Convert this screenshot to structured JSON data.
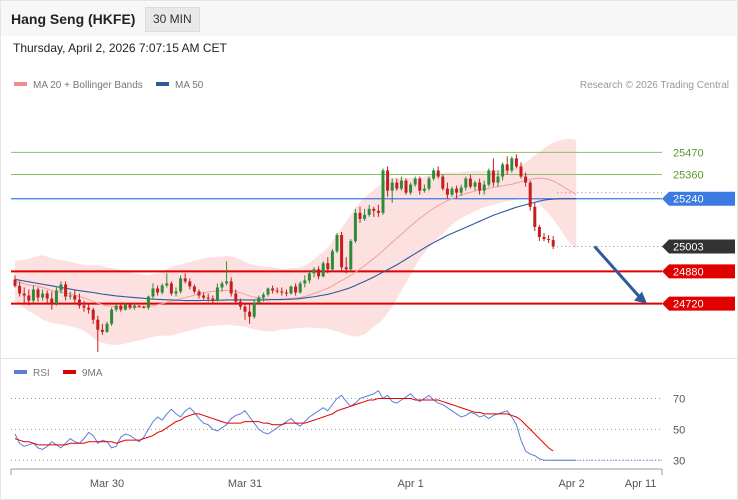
{
  "header": {
    "title": "Hang Seng (HKFE)",
    "interval": "30 MIN"
  },
  "timestamp": "Thursday, April 2, 2026 7:07:15 AM CET",
  "legend": {
    "ma20": {
      "label": "MA 20 + Bollinger Bands",
      "color": "#f28b8b"
    },
    "ma50": {
      "label": "MA 50",
      "color": "#2e5a9a"
    },
    "rsi": {
      "label": "RSI",
      "color": "#5b7fd6"
    },
    "ma9": {
      "label": "9MA",
      "color": "#e00000"
    }
  },
  "copyright": "Research © 2026 Trading Central",
  "colors": {
    "up": "#2e8b3a",
    "down": "#c41e1e",
    "resistance": "#8cc063",
    "pivot": "#3b7ae0",
    "support": "#e00000",
    "last": "#333333",
    "arrow": "#2e5a9a"
  },
  "chart_data": {
    "type": "candlestick",
    "ylim": [
      24480,
      25670
    ],
    "x_ticks": [
      {
        "label": "Mar 30",
        "index": 20
      },
      {
        "label": "Mar 31",
        "index": 50
      },
      {
        "label": "Apr 1",
        "index": 86
      },
      {
        "label": "Apr 2",
        "index": 121
      },
      {
        "label": "Apr 11",
        "index": 136
      }
    ],
    "levels": [
      {
        "label": "25470",
        "value": 25470,
        "kind": "resistance"
      },
      {
        "label": "25360",
        "value": 25360,
        "kind": "resistance"
      },
      {
        "label": "25240",
        "value": 25240,
        "kind": "pivot"
      },
      {
        "label": "25003",
        "value": 25003,
        "kind": "last"
      },
      {
        "label": "24880",
        "value": 24880,
        "kind": "support"
      },
      {
        "label": "24720",
        "value": 24720,
        "kind": "support"
      }
    ],
    "forecast_arrow": {
      "from": {
        "index": 126,
        "value": 25003
      },
      "to": {
        "index": 140,
        "value": 24720
      }
    },
    "ohlc": [
      [
        24839,
        24860,
        24800,
        24808
      ],
      [
        24808,
        24830,
        24755,
        24770
      ],
      [
        24770,
        24800,
        24720,
        24760
      ],
      [
        24760,
        24790,
        24712,
        24735
      ],
      [
        24735,
        24810,
        24725,
        24790
      ],
      [
        24790,
        24800,
        24730,
        24750
      ],
      [
        24750,
        24790,
        24735,
        24770
      ],
      [
        24770,
        24785,
        24725,
        24745
      ],
      [
        24745,
        24780,
        24690,
        24720
      ],
      [
        24720,
        24800,
        24710,
        24785
      ],
      [
        24785,
        24830,
        24770,
        24815
      ],
      [
        24815,
        24830,
        24735,
        24755
      ],
      [
        24755,
        24780,
        24740,
        24760
      ],
      [
        24760,
        24790,
        24725,
        24740
      ],
      [
        24740,
        24770,
        24695,
        24710
      ],
      [
        24710,
        24735,
        24680,
        24700
      ],
      [
        24700,
        24725,
        24670,
        24690
      ],
      [
        24690,
        24700,
        24620,
        24640
      ],
      [
        24640,
        24660,
        24480,
        24590
      ],
      [
        24590,
        24620,
        24565,
        24580
      ],
      [
        24580,
        24630,
        24575,
        24620
      ],
      [
        24620,
        24700,
        24610,
        24690
      ],
      [
        24690,
        24715,
        24680,
        24710
      ],
      [
        24710,
        24725,
        24680,
        24690
      ],
      [
        24690,
        24725,
        24685,
        24715
      ],
      [
        24715,
        24725,
        24690,
        24700
      ],
      [
        24700,
        24720,
        24690,
        24710
      ],
      [
        24710,
        24712,
        24700,
        24705
      ],
      [
        24705,
        24710,
        24695,
        24700
      ],
      [
        24700,
        24760,
        24690,
        24755
      ],
      [
        24755,
        24820,
        24740,
        24795
      ],
      [
        24795,
        24810,
        24760,
        24775
      ],
      [
        24775,
        24820,
        24765,
        24810
      ],
      [
        24810,
        24870,
        24800,
        24820
      ],
      [
        24820,
        24830,
        24760,
        24770
      ],
      [
        24770,
        24800,
        24755,
        24780
      ],
      [
        24780,
        24860,
        24770,
        24845
      ],
      [
        24845,
        24870,
        24820,
        24830
      ],
      [
        24830,
        24845,
        24790,
        24805
      ],
      [
        24805,
        24815,
        24770,
        24780
      ],
      [
        24780,
        24790,
        24745,
        24760
      ],
      [
        24760,
        24775,
        24740,
        24750
      ],
      [
        24750,
        24770,
        24730,
        24745
      ],
      [
        24745,
        24760,
        24725,
        24735
      ],
      [
        24735,
        24820,
        24730,
        24800
      ],
      [
        24800,
        24830,
        24780,
        24820
      ],
      [
        24820,
        24930,
        24810,
        24830
      ],
      [
        24830,
        24850,
        24755,
        24770
      ],
      [
        24770,
        24790,
        24715,
        24730
      ],
      [
        24730,
        24745,
        24690,
        24705
      ],
      [
        24705,
        24720,
        24640,
        24680
      ],
      [
        24680,
        24720,
        24620,
        24655
      ],
      [
        24655,
        24740,
        24645,
        24725
      ],
      [
        24725,
        24760,
        24715,
        24750
      ],
      [
        24750,
        24775,
        24730,
        24765
      ],
      [
        24765,
        24800,
        24755,
        24795
      ],
      [
        24795,
        24810,
        24770,
        24785
      ],
      [
        24785,
        24800,
        24770,
        24780
      ],
      [
        24780,
        24800,
        24760,
        24775
      ],
      [
        24775,
        24790,
        24755,
        24770
      ],
      [
        24770,
        24810,
        24765,
        24805
      ],
      [
        24805,
        24820,
        24760,
        24775
      ],
      [
        24775,
        24830,
        24770,
        24820
      ],
      [
        24820,
        24860,
        24800,
        24835
      ],
      [
        24835,
        24880,
        24820,
        24870
      ],
      [
        24870,
        24900,
        24850,
        24890
      ],
      [
        24890,
        24905,
        24840,
        24855
      ],
      [
        24855,
        24930,
        24850,
        24920
      ],
      [
        24920,
        24950,
        24870,
        24890
      ],
      [
        24890,
        24990,
        24880,
        24980
      ],
      [
        24980,
        25070,
        24970,
        25060
      ],
      [
        25060,
        25075,
        24880,
        24900
      ],
      [
        24900,
        24950,
        24870,
        24890
      ],
      [
        24890,
        25040,
        24880,
        25030
      ],
      [
        25030,
        25190,
        25020,
        25170
      ],
      [
        25170,
        25200,
        25120,
        25140
      ],
      [
        25140,
        25190,
        25130,
        25160
      ],
      [
        25160,
        25210,
        25150,
        25190
      ],
      [
        25190,
        25200,
        25150,
        25180
      ],
      [
        25180,
        25210,
        25150,
        25170
      ],
      [
        25170,
        25390,
        25160,
        25380
      ],
      [
        25380,
        25400,
        25250,
        25280
      ],
      [
        25280,
        25340,
        25220,
        25320
      ],
      [
        25320,
        25340,
        25280,
        25290
      ],
      [
        25290,
        25350,
        25280,
        25330
      ],
      [
        25330,
        25340,
        25260,
        25270
      ],
      [
        25270,
        25320,
        25260,
        25310
      ],
      [
        25310,
        25350,
        25300,
        25340
      ],
      [
        25340,
        25350,
        25260,
        25280
      ],
      [
        25280,
        25310,
        25270,
        25290
      ],
      [
        25290,
        25350,
        25280,
        25340
      ],
      [
        25340,
        25390,
        25330,
        25380
      ],
      [
        25380,
        25400,
        25340,
        25350
      ],
      [
        25350,
        25360,
        25280,
        25290
      ],
      [
        25290,
        25320,
        25240,
        25260
      ],
      [
        25260,
        25300,
        25250,
        25290
      ],
      [
        25290,
        25305,
        25240,
        25270
      ],
      [
        25270,
        25310,
        25255,
        25295
      ],
      [
        25295,
        25350,
        25280,
        25340
      ],
      [
        25340,
        25360,
        25290,
        25300
      ],
      [
        25300,
        25330,
        25280,
        25320
      ],
      [
        25320,
        25340,
        25260,
        25280
      ],
      [
        25280,
        25330,
        25260,
        25310
      ],
      [
        25310,
        25390,
        25300,
        25380
      ],
      [
        25380,
        25440,
        25300,
        25320
      ],
      [
        25320,
        25380,
        25300,
        25350
      ],
      [
        25350,
        25420,
        25330,
        25410
      ],
      [
        25410,
        25450,
        25360,
        25380
      ],
      [
        25380,
        25450,
        25370,
        25440
      ],
      [
        25440,
        25460,
        25390,
        25400
      ],
      [
        25400,
        25420,
        25340,
        25350
      ],
      [
        25350,
        25370,
        25300,
        25320
      ],
      [
        25320,
        25330,
        25180,
        25200
      ],
      [
        25200,
        25220,
        25080,
        25100
      ],
      [
        25100,
        25110,
        25030,
        25050
      ],
      [
        25050,
        25070,
        25030,
        25040
      ],
      [
        25040,
        25060,
        25020,
        25035
      ],
      [
        25035,
        25055,
        24990,
        25003
      ]
    ],
    "ma20": [
      24830,
      24825,
      24818,
      24812,
      24810,
      24806,
      24800,
      24793,
      24785,
      24780,
      24777,
      24772,
      24768,
      24762,
      24755,
      24748,
      24740,
      24730,
      24722,
      24715,
      24710,
      24706,
      24704,
      24703,
      24702,
      24702,
      24702,
      24702,
      24703,
      24705,
      24710,
      24715,
      24720,
      24726,
      24732,
      24738,
      24744,
      24750,
      24756,
      24762,
      24768,
      24774,
      24778,
      24780,
      24782,
      24784,
      24786,
      24784,
      24780,
      24774,
      24766,
      24758,
      24752,
      24748,
      24745,
      24742,
      24741,
      24741,
      24742,
      24743,
      24745,
      24747,
      24750,
      24755,
      24762,
      24770,
      24778,
      24787,
      24796,
      24808,
      24822,
      24834,
      24846,
      24860,
      24876,
      24892,
      24908,
      24926,
      24944,
      24962,
      24982,
      25004,
      25024,
      25044,
      25064,
      25084,
      25104,
      25124,
      25142,
      25160,
      25176,
      25192,
      25206,
      25218,
      25230,
      25240,
      25250,
      25258,
      25266,
      25272,
      25278,
      25284,
      25288,
      25292,
      25296,
      25300,
      25304,
      25308,
      25312,
      25318,
      25324,
      25330,
      25336,
      25340,
      25342,
      25340,
      25336,
      25328,
      25316,
      25302,
      25288,
      25275,
      25262
    ],
    "ma50": [
      24840,
      24836,
      24832,
      24828,
      24824,
      24820,
      24816,
      24812,
      24808,
      24804,
      24800,
      24796,
      24792,
      24788,
      24784,
      24781,
      24778,
      24775,
      24771,
      24767,
      24764,
      24761,
      24758,
      24756,
      24754,
      24752,
      24750,
      24748,
      24746,
      24744,
      24742,
      24741,
      24740,
      24739,
      24738,
      24737,
      24736,
      24735,
      24735,
      24735,
      24735,
      24736,
      24736,
      24736,
      24737,
      24737,
      24738,
      24738,
      24738,
      24738,
      24738,
      24738,
      24738,
      24738,
      24738,
      24739,
      24740,
      24740,
      24740,
      24741,
      24742,
      24743,
      24745,
      24748,
      24751,
      24754,
      24758,
      24762,
      24766,
      24772,
      24778,
      24785,
      24792,
      24800,
      24810,
      24820,
      24830,
      24841,
      24852,
      24864,
      24876,
      24888,
      24900,
      24912,
      24926,
      24940,
      24954,
      24968,
      24982,
      24996,
      25010,
      25022,
      25034,
      25046,
      25058,
      25068,
      25078,
      25088,
      25098,
      25108,
      25118,
      25128,
      25138,
      25148,
      25158,
      25166,
      25174,
      25182,
      25190,
      25198,
      25204,
      25210,
      25216,
      25222,
      25228,
      25233,
      25236,
      25238,
      25239,
      25240,
      25240,
      25240,
      25240
    ],
    "bb_width": [
      100,
      110,
      120,
      130,
      140,
      150,
      160,
      160,
      160,
      160,
      160,
      160,
      160,
      160,
      160,
      165,
      170,
      180,
      190,
      190,
      190,
      190,
      190,
      185,
      180,
      175,
      170,
      165,
      160,
      155,
      155,
      155,
      160,
      165,
      170,
      170,
      170,
      170,
      170,
      170,
      170,
      170,
      170,
      170,
      170,
      170,
      170,
      170,
      170,
      165,
      160,
      160,
      160,
      160,
      160,
      160,
      160,
      155,
      150,
      150,
      150,
      150,
      150,
      155,
      160,
      170,
      180,
      190,
      200,
      220,
      240,
      260,
      280,
      300,
      320,
      330,
      340,
      340,
      340,
      340,
      340,
      330,
      320,
      300,
      280,
      260,
      240,
      220,
      200,
      190,
      180,
      170,
      160,
      150,
      140,
      130,
      120,
      115,
      110,
      105,
      100,
      95,
      90,
      88,
      86,
      84,
      82,
      80,
      80,
      82,
      85,
      90,
      100,
      115,
      130,
      150,
      170,
      190,
      210,
      230,
      250,
      260,
      270
    ],
    "rsi": {
      "ylim": [
        25,
        80
      ],
      "levels": [
        70,
        50,
        30
      ],
      "values": [
        47,
        41,
        39,
        40,
        41,
        38,
        37,
        39,
        42,
        40,
        38,
        41,
        44,
        42,
        41,
        44,
        48,
        46,
        41,
        43,
        42,
        38,
        39,
        45,
        47,
        46,
        44,
        42,
        45,
        50,
        55,
        58,
        56,
        60,
        63,
        60,
        58,
        62,
        64,
        61,
        57,
        54,
        53,
        50,
        49,
        51,
        53,
        57,
        59,
        60,
        62,
        58,
        54,
        50,
        48,
        47,
        49,
        51,
        53,
        55,
        57,
        54,
        52,
        55,
        58,
        60,
        62,
        64,
        62,
        66,
        70,
        72,
        68,
        65,
        67,
        70,
        71,
        72,
        73,
        75,
        70,
        72,
        68,
        67,
        69,
        71,
        73,
        70,
        68,
        70,
        72,
        69,
        67,
        66,
        64,
        62,
        60,
        58,
        59,
        61,
        60,
        58,
        59,
        57,
        59,
        60,
        61,
        62,
        58,
        53,
        43,
        36,
        34,
        33,
        31,
        30,
        30,
        30,
        30,
        30,
        30,
        30,
        30
      ],
      "ma9": [
        44,
        43,
        42,
        42,
        41,
        40,
        40,
        40,
        40,
        40,
        40,
        40,
        41,
        41,
        41,
        41,
        42,
        42,
        42,
        42,
        42,
        42,
        41,
        42,
        43,
        43,
        43,
        43,
        44,
        45,
        46,
        48,
        49,
        51,
        53,
        55,
        56,
        58,
        59,
        60,
        60,
        59,
        58,
        57,
        56,
        55,
        54,
        54,
        54,
        54,
        55,
        55,
        55,
        55,
        54,
        54,
        53,
        53,
        53,
        54,
        54,
        54,
        54,
        54,
        55,
        56,
        57,
        58,
        59,
        60,
        62,
        63,
        64,
        65,
        66,
        67,
        68,
        69,
        69,
        70,
        70,
        70,
        70,
        70,
        70,
        70,
        70,
        69,
        69,
        69,
        69,
        69,
        69,
        68,
        67,
        66,
        65,
        64,
        63,
        62,
        61,
        61,
        60,
        60,
        60,
        60,
        60,
        60,
        59,
        58,
        56,
        53,
        50,
        47,
        44,
        41,
        38,
        36,
        null,
        null,
        null,
        null,
        null
      ]
    }
  }
}
